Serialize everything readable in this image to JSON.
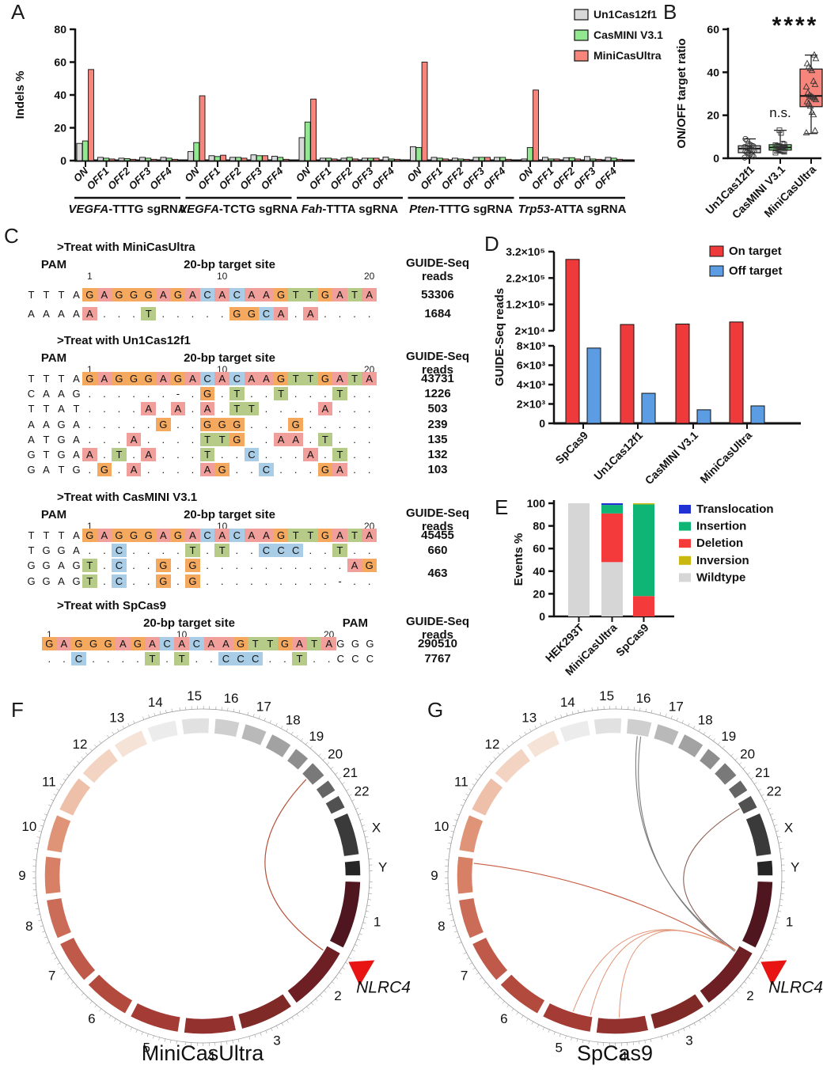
{
  "panel_labels": {
    "A": "A",
    "B": "B",
    "C": "C",
    "D": "D",
    "E": "E",
    "F": "F",
    "G": "G"
  },
  "circos_chromosomes": [
    {
      "name": "1",
      "size_mb": 249,
      "color": "#4f161f"
    },
    {
      "name": "2",
      "size_mb": 242,
      "color": "#6d1f24"
    },
    {
      "name": "3",
      "size_mb": 198,
      "color": "#802a28"
    },
    {
      "name": "4",
      "size_mb": 190,
      "color": "#93312e"
    },
    {
      "name": "5",
      "size_mb": 182,
      "color": "#a43c35"
    },
    {
      "name": "6",
      "size_mb": 171,
      "color": "#b24a3e"
    },
    {
      "name": "7",
      "size_mb": 159,
      "color": "#bf5a4a"
    },
    {
      "name": "8",
      "size_mb": 145,
      "color": "#ca6c58"
    },
    {
      "name": "9",
      "size_mb": 138,
      "color": "#d78065"
    },
    {
      "name": "10",
      "size_mb": 134,
      "color": "#e09477"
    },
    {
      "name": "11",
      "size_mb": 135,
      "color": "#eebfa9"
    },
    {
      "name": "12",
      "size_mb": 133,
      "color": "#f3d4c2"
    },
    {
      "name": "13",
      "size_mb": 114,
      "color": "#f6e3d7"
    },
    {
      "name": "14",
      "size_mb": 107,
      "color": "#ececec"
    },
    {
      "name": "15",
      "size_mb": 102,
      "color": "#e1e1e1"
    },
    {
      "name": "16",
      "size_mb": 90,
      "color": "#cfcfcf"
    },
    {
      "name": "17",
      "size_mb": 83,
      "color": "#b9b9b9"
    },
    {
      "name": "18",
      "size_mb": 80,
      "color": "#a2a2a2"
    },
    {
      "name": "19",
      "size_mb": 59,
      "color": "#8e8e8e"
    },
    {
      "name": "20",
      "size_mb": 64,
      "color": "#797979"
    },
    {
      "name": "21",
      "size_mb": 47,
      "color": "#656565"
    },
    {
      "name": "22",
      "size_mb": 51,
      "color": "#515151"
    },
    {
      "name": "X",
      "size_mb": 156,
      "color": "#3a3a3a"
    },
    {
      "name": "Y",
      "size_mb": 57,
      "color": "#252525"
    }
  ],
  "chart_data": [
    {
      "id": "A",
      "type": "bar",
      "title": "",
      "ylabel": "Indels %",
      "ylim": [
        0,
        80
      ],
      "yticks": [
        0,
        20,
        40,
        60,
        80
      ],
      "categories": [
        "ON",
        "OFF1",
        "OFF2",
        "OFF3",
        "OFF4"
      ],
      "groups": [
        {
          "gene": "VEGFA",
          "rest": "-TTTG sgRNA"
        },
        {
          "gene": "VEGFA",
          "rest": "-TCTG sgRNA"
        },
        {
          "gene": "Fah",
          "rest": "-TTTA sgRNA"
        },
        {
          "gene": "Pten",
          "rest": "-TTTG sgRNA"
        },
        {
          "gene": "Trp53",
          "rest": "-ATTA sgRNA"
        }
      ],
      "series": [
        {
          "name": "Un1Cas12f1",
          "color": "#d8d8d8",
          "values": [
            [
              10.5,
              2,
              1.5,
              2,
              2
            ],
            [
              5.5,
              3,
              2,
              3.5,
              2.7
            ],
            [
              14,
              1.5,
              1.5,
              1.5,
              2.2
            ],
            [
              8.5,
              2,
              1.5,
              2,
              2
            ],
            [
              1,
              2,
              1.8,
              2.5,
              2
            ]
          ]
        },
        {
          "name": "CasMINI V3.1",
          "color": "#92e88f",
          "values": [
            [
              12,
              1.5,
              1.2,
              1.5,
              1.5
            ],
            [
              11,
              2.5,
              2,
              3,
              2
            ],
            [
              23.5,
              1.5,
              2,
              1.5,
              1
            ],
            [
              8,
              1.5,
              1,
              2,
              2
            ],
            [
              8,
              1,
              1.8,
              1,
              1.5
            ]
          ]
        },
        {
          "name": "MiniCasUltra",
          "color": "#f7857b",
          "values": [
            [
              55.5,
              1,
              0.8,
              0.8,
              0.8
            ],
            [
              39.5,
              3.3,
              1.5,
              3,
              0.8
            ],
            [
              37.5,
              1,
              1,
              1.5,
              0.8
            ],
            [
              60,
              1,
              0.8,
              2,
              0.8
            ],
            [
              43,
              1,
              1,
              0.8,
              0.8
            ]
          ]
        }
      ]
    },
    {
      "id": "B",
      "type": "boxplot",
      "ylabel": "ON/OFF target ratio",
      "ylim": [
        0,
        60
      ],
      "yticks": [
        0,
        20,
        40,
        60
      ],
      "boxes": [
        {
          "name": "Un1Cas12f1",
          "color": "#d8d8d8",
          "marker": "circle",
          "lo": 0.3,
          "q1": 2.6,
          "median": 4.5,
          "q3": 5.8,
          "hi": 9,
          "annotation": "",
          "points": [
            0.3,
            0.8,
            1.3,
            1.8,
            2.3,
            2.8,
            3.2,
            3.5,
            3.8,
            4.1,
            4.4,
            4.7,
            5.0,
            5.3,
            5.6,
            5.9,
            6.3,
            6.8,
            8.2,
            9.0
          ]
        },
        {
          "name": "CasMINI V3.1",
          "color": "#92e88f",
          "marker": "square",
          "lo": 2.5,
          "q1": 3.8,
          "median": 5.0,
          "q3": 6.3,
          "hi": 13,
          "annotation": "n.s.",
          "points": [
            2.6,
            3.0,
            3.4,
            3.8,
            4.1,
            4.3,
            4.5,
            4.7,
            4.9,
            5.1,
            5.3,
            5.5,
            5.8,
            6.1,
            6.4,
            6.8,
            11.8,
            13.0
          ]
        },
        {
          "name": "MiniCasUltra",
          "color": "#f7857b",
          "marker": "triangle",
          "lo": 11.5,
          "q1": 24,
          "median": 29,
          "q3": 41.5,
          "hi": 48,
          "annotation": "****",
          "points": [
            11.8,
            12.8,
            20.2,
            21.3,
            24.2,
            25.5,
            26.3,
            27.2,
            27.8,
            28.3,
            28.8,
            29.3,
            30.5,
            33.2,
            34.3,
            35.8,
            40.8,
            41.6,
            42.6,
            44.0,
            46.3,
            48.0
          ]
        }
      ]
    },
    {
      "id": "D",
      "type": "bar-broken-axis",
      "ylabel": "GUIDE-Seq reads",
      "categories": [
        "SpCas9",
        "Un1Cas12f1",
        "CasMINI V3.1",
        "MiniCasUltra"
      ],
      "axis_lower": {
        "range": [
          0,
          8000
        ],
        "ticks": [
          [
            0,
            "0"
          ],
          [
            2000,
            "2×10³"
          ],
          [
            4000,
            "4×10³"
          ],
          [
            6000,
            "6×10³"
          ],
          [
            8000,
            "8×10³"
          ]
        ]
      },
      "axis_upper": {
        "range": [
          20000,
          320000
        ],
        "ticks": [
          [
            20000,
            "2×10⁴"
          ],
          [
            120000,
            "1.2×10⁵"
          ],
          [
            220000,
            "2.2×10⁵"
          ],
          [
            320000,
            "3.2×10⁵"
          ]
        ]
      },
      "series": [
        {
          "name": "On target",
          "color": "#ee3a3a",
          "values": [
            290510,
            43731,
            45455,
            53306
          ]
        },
        {
          "name": "Off target",
          "color": "#5b9ce2",
          "values": [
            7767,
            3100,
            1400,
            1800
          ]
        }
      ]
    },
    {
      "id": "E",
      "type": "stacked-bar",
      "ylabel": "Events %",
      "ylim": [
        0,
        100
      ],
      "yticks": [
        0,
        20,
        40,
        60,
        80,
        100
      ],
      "categories": [
        "HEK293T",
        "MiniCasUltra",
        "SpCas9"
      ],
      "legend": [
        "Translocation",
        "Insertion",
        "Deletion",
        "Inversion",
        "Wildtype"
      ],
      "colors": {
        "Translocation": "#2231d4",
        "Insertion": "#0eb574",
        "Deletion": "#f43a3a",
        "Inversion": "#c9b90f",
        "Wildtype": "#d6d6d6"
      },
      "stacks": [
        [
          [
            "Wildtype",
            100
          ]
        ],
        [
          [
            "Wildtype",
            48
          ],
          [
            "Deletion",
            43
          ],
          [
            "Insertion",
            7.5
          ],
          [
            "Translocation",
            1.5
          ]
        ],
        [
          [
            "Deletion",
            18
          ],
          [
            "Insertion",
            81
          ],
          [
            "Inversion",
            1
          ]
        ]
      ]
    },
    {
      "id": "F",
      "type": "circos",
      "title": "MiniCasUltra",
      "gene_marker": "NLRC4",
      "marker_color": "#e81313",
      "links": [
        {
          "from": [
            "2",
            0.1
          ],
          "to": [
            "20",
            0.45
          ],
          "color": "#b55038",
          "w": 1.2,
          "double": false
        }
      ]
    },
    {
      "id": "G",
      "type": "circos",
      "title": "SpCas9",
      "gene_marker": "NLRC4",
      "marker_color": "#e81313",
      "links": [
        {
          "from": [
            "2",
            0.1
          ],
          "to": [
            "16",
            0.5
          ],
          "color": "#7d7d7d",
          "w": 1.1,
          "double": true
        },
        {
          "from": [
            "2",
            0.1
          ],
          "to": [
            "22",
            0.45
          ],
          "color": "#8c6156",
          "w": 1.1,
          "double": false
        },
        {
          "from": [
            "2",
            0.1
          ],
          "to": [
            "9",
            0.85
          ],
          "color": "#c95c42",
          "w": 1.1,
          "double": false
        },
        {
          "from": [
            "2",
            0.1
          ],
          "to": [
            "5",
            0.45
          ],
          "color": "#e29475",
          "w": 1.0,
          "double": false
        },
        {
          "from": [
            "2",
            0.1
          ],
          "to": [
            "5",
            0.06
          ],
          "color": "#e29475",
          "w": 1.0,
          "double": false
        },
        {
          "from": [
            "2",
            0.1
          ],
          "to": [
            "4",
            0.55
          ],
          "color": "#e29475",
          "w": 1.0,
          "double": false
        }
      ]
    }
  ],
  "alignment": {
    "label": "C",
    "nt_colors": {
      "A": "#f19f9b",
      "G": "#f4a95e",
      "C": "#a9cde6",
      "T": "#b5cb87"
    },
    "headers": {
      "pam": "PAM",
      "target": "20-bp target site",
      "reads1": "GUIDE-Seq",
      "reads2": "reads"
    },
    "position_markers": [
      "1",
      "10",
      "20"
    ],
    "blocks": [
      {
        "title": ">Treat with MiniCasUltra",
        "pam_side": "left",
        "rows": [
          {
            "pam": "TTTA",
            "seq": "GAGGGAGACACAAGTTGATA",
            "on": true,
            "reads": "53306"
          },
          {
            "pam": "AAAA",
            "seq": "A...T.....GGCA.A....",
            "on": false,
            "reads": "1684"
          }
        ]
      },
      {
        "title": ">Treat with Un1Cas12f1",
        "pam_side": "left",
        "rows": [
          {
            "pam": "TTTA",
            "seq": "GAGGGAGACACAAGTTGATA",
            "on": true,
            "reads": "43731"
          },
          {
            "pam": "CAAG",
            "seq": "......-.G.T..T...T..",
            "on": false,
            "reads": "1226"
          },
          {
            "pam": "TTAT",
            "seq": "....A.A.A.TT....A...",
            "on": false,
            "reads": "503"
          },
          {
            "pam": "AAGA",
            "seq": ".....G..GGG...G.....",
            "on": false,
            "reads": "239"
          },
          {
            "pam": "ATGA",
            "seq": "...A....TTG..AA.T...",
            "on": false,
            "reads": "135"
          },
          {
            "pam": "GTGA",
            "seq": "A.T.A...T..C...A.T..",
            "on": false,
            "reads": "132"
          },
          {
            "pam": "GATG",
            "seq": ".G.A....AG..C...GA..",
            "on": false,
            "reads": "103"
          }
        ]
      },
      {
        "title": ">Treat with CasMINI V3.1",
        "pam_side": "left",
        "rows": [
          {
            "pam": "TTTA",
            "seq": "GAGGGAGACACAAGTTGATA",
            "on": true,
            "reads": "45455"
          },
          {
            "pam": "TGGA",
            "seq": "..C....T.T..CCC..T..",
            "on": false,
            "reads": "660"
          },
          {
            "pam": "GGAG",
            "seq": "T.C..G.G..........AG",
            "on": false,
            "reads": "463",
            "reads_dy": 10
          },
          {
            "pam": "GGAG",
            "seq": "T.C..G.G.........-..",
            "on": false,
            "reads": ""
          }
        ]
      },
      {
        "title": ">Treat with SpCas9",
        "pam_side": "right",
        "rows": [
          {
            "pam": "GGG",
            "seq": "GAGGGAGACACAAGTTGATA",
            "on": true,
            "reads": "290510"
          },
          {
            "pam": "CCC",
            "seq": "..C....T.T..CCC..T..",
            "on": false,
            "reads": "7767"
          }
        ]
      }
    ]
  }
}
